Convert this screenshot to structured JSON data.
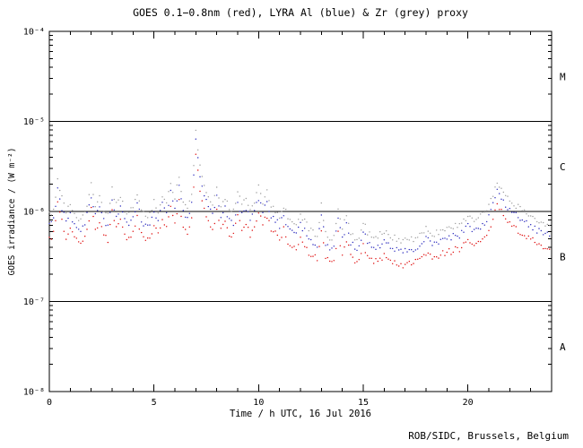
{
  "figure": {
    "footer": "ROB/SIDC, Brussels, Belgium",
    "background": "#ffffff",
    "frame_color": "#000000"
  },
  "chart_data": {
    "type": "line",
    "title": "GOES 0.1−0.8nm (red), LYRA Al (blue) & Zr (grey) proxy",
    "xlabel": "Time / h UTC, 16 Jul 2016",
    "ylabel": "GOES irradiance / (W m⁻²)",
    "x_range": [
      0,
      24
    ],
    "y_log_range": [
      -8,
      -4
    ],
    "grid": false,
    "legend_position": "in-title",
    "x_major_ticks": [
      0,
      5,
      10,
      15,
      20
    ],
    "x_major_labels": [
      "0",
      "5",
      "10",
      "15",
      "20"
    ],
    "x_minor_step": 1,
    "y_tick_log10": [
      -8,
      -7,
      -6,
      -5,
      -4
    ],
    "y_tick_labels": [
      "10⁻⁸",
      "10⁻⁷",
      "10⁻⁶",
      "10⁻⁵",
      "10⁻⁴"
    ],
    "hlines": [
      1e-05,
      1e-06,
      1e-07
    ],
    "flare_classes": [
      {
        "label": "M",
        "log10_center": -4.5
      },
      {
        "label": "C",
        "log10_center": -5.5
      },
      {
        "label": "B",
        "log10_center": -6.5
      },
      {
        "label": "A",
        "log10_center": -7.5
      }
    ],
    "value_scale": 1e-07,
    "value_unit": "W m⁻²",
    "x": [
      0,
      0.2,
      0.4,
      0.6,
      0.8,
      1,
      1.2,
      1.4,
      1.6,
      1.8,
      2,
      2.2,
      2.4,
      2.6,
      2.8,
      3,
      3.2,
      3.4,
      3.6,
      3.8,
      4,
      4.2,
      4.4,
      4.6,
      4.8,
      5,
      5.2,
      5.4,
      5.6,
      5.8,
      6,
      6.2,
      6.4,
      6.6,
      6.8,
      7,
      7.2,
      7.4,
      7.6,
      7.8,
      8,
      8.2,
      8.4,
      8.6,
      8.8,
      9,
      9.2,
      9.4,
      9.6,
      9.8,
      10,
      10.2,
      10.4,
      10.6,
      10.8,
      11,
      11.2,
      11.4,
      11.6,
      11.8,
      12,
      12.2,
      12.4,
      12.6,
      12.8,
      13,
      13.2,
      13.4,
      13.6,
      13.8,
      14,
      14.2,
      14.4,
      14.6,
      14.8,
      15,
      15.2,
      15.4,
      15.6,
      15.8,
      16,
      16.2,
      16.4,
      16.6,
      16.8,
      17,
      17.2,
      17.4,
      17.6,
      17.8,
      18,
      18.2,
      18.4,
      18.6,
      18.8,
      19,
      19.2,
      19.4,
      19.6,
      19.8,
      20,
      20.2,
      20.4,
      20.6,
      20.8,
      21,
      21.2,
      21.4,
      21.6,
      21.8,
      22,
      22.2,
      22.4,
      22.6,
      22.8,
      23,
      23.2,
      23.4,
      23.6,
      23.8,
      24
    ],
    "series": [
      {
        "name": "GOES 0.1-0.8nm",
        "color": "#dd0000",
        "values": [
          4.9,
          5.6,
          12.6,
          7.7,
          5.3,
          6.3,
          4.9,
          4.6,
          4.6,
          6.3,
          10.5,
          6.3,
          7.7,
          5.6,
          4.9,
          9.8,
          6.3,
          7.7,
          5.6,
          4.9,
          6.3,
          8.4,
          5.6,
          4.9,
          4.9,
          7,
          5.6,
          8.4,
          6.3,
          11.2,
          7.7,
          12.6,
          7,
          5.6,
          8.4,
          42,
          17.5,
          11.2,
          7.7,
          6.3,
          9.8,
          6.3,
          7.7,
          5.6,
          5.3,
          9.1,
          6.3,
          7.7,
          5.6,
          7,
          9.8,
          7,
          9.1,
          6.3,
          5.6,
          4.9,
          6.3,
          4.6,
          4.2,
          3.9,
          4.9,
          4.2,
          3.5,
          3.2,
          2.9,
          6.3,
          3.2,
          2.7,
          2.8,
          5.6,
          3.5,
          4.9,
          3.2,
          2.8,
          2.8,
          4.2,
          3.2,
          2.8,
          2.8,
          2.9,
          3.2,
          2.9,
          2.8,
          2.7,
          2.6,
          2.5,
          2.6,
          2.7,
          2.8,
          2.9,
          3.5,
          3.2,
          3.1,
          3.2,
          3.4,
          3.6,
          3.5,
          3.9,
          3.8,
          4.2,
          4.9,
          4.3,
          4.6,
          4.8,
          5.3,
          6,
          8.4,
          11.9,
          9.8,
          8.4,
          7.4,
          6.7,
          6,
          5.6,
          5.3,
          4.9,
          4.6,
          4.2,
          4.1,
          3.9,
          3.6
        ]
      },
      {
        "name": "LYRA Al proxy",
        "color": "#2222bb",
        "values": [
          7,
          8,
          18,
          11,
          7.5,
          9,
          7,
          6.5,
          6.5,
          9,
          15,
          9,
          11,
          8,
          7,
          14,
          9,
          11,
          8,
          7,
          9,
          12,
          8,
          7,
          7,
          10,
          8,
          12,
          9,
          16,
          11,
          18,
          10,
          8,
          12,
          60,
          25,
          16,
          11,
          9,
          14,
          9,
          11,
          8,
          7.5,
          13,
          9,
          11,
          8,
          10,
          14,
          10,
          13,
          9,
          8,
          7,
          9,
          6.5,
          6,
          5.5,
          7,
          6,
          5,
          4.5,
          4.2,
          9,
          4.5,
          3.8,
          4,
          8,
          5,
          7,
          4.5,
          4,
          4,
          6,
          4.5,
          4,
          4,
          4.2,
          4.5,
          4.2,
          4,
          3.8,
          3.7,
          3.6,
          3.7,
          3.8,
          4,
          4.2,
          5,
          4.5,
          4.4,
          4.6,
          4.8,
          5.2,
          5,
          5.5,
          5.4,
          6,
          7,
          6.2,
          6.5,
          6.8,
          7.5,
          8.5,
          12,
          17,
          14,
          12,
          10.5,
          9.5,
          8.5,
          8,
          7.5,
          7,
          6.5,
          6,
          5.8,
          5.5,
          5.2
        ]
      },
      {
        "name": "LYRA Zr proxy",
        "color": "#999999",
        "values": [
          9.1,
          10.4,
          23.4,
          14.3,
          9.8,
          11.7,
          9.1,
          8.5,
          8.5,
          11.7,
          19.5,
          11.7,
          14.3,
          10.4,
          9.1,
          18.2,
          11.7,
          14.3,
          10.4,
          9.1,
          11.7,
          15.6,
          10.4,
          9.1,
          9.1,
          13,
          10.4,
          15.6,
          11.7,
          20.8,
          14.3,
          23.4,
          13,
          10.4,
          15.6,
          78,
          32.5,
          20.8,
          14.3,
          11.7,
          18.2,
          11.7,
          14.3,
          10.4,
          9.8,
          16.9,
          11.7,
          14.3,
          10.4,
          13,
          18.2,
          13,
          16.9,
          11.7,
          10.4,
          9.1,
          11.7,
          8.5,
          7.8,
          7.2,
          9.1,
          7.8,
          6.5,
          5.9,
          5.5,
          11.7,
          5.9,
          4.9,
          5.2,
          10.4,
          6.5,
          9.1,
          5.9,
          5.2,
          5.2,
          7.8,
          5.9,
          5.2,
          5.2,
          5.5,
          5.9,
          5.5,
          5.2,
          4.9,
          4.8,
          4.7,
          4.8,
          4.9,
          5.2,
          5.5,
          6.5,
          5.9,
          5.7,
          6,
          6.2,
          6.8,
          6.5,
          7.2,
          7,
          7.8,
          9.1,
          8.1,
          8.5,
          8.8,
          9.8,
          11.1,
          15.6,
          22.1,
          18.2,
          15.6,
          13.7,
          12.4,
          11.1,
          10.4,
          9.8,
          9.1,
          8.5,
          7.8,
          7.5,
          7.2,
          6.8
        ]
      }
    ]
  }
}
